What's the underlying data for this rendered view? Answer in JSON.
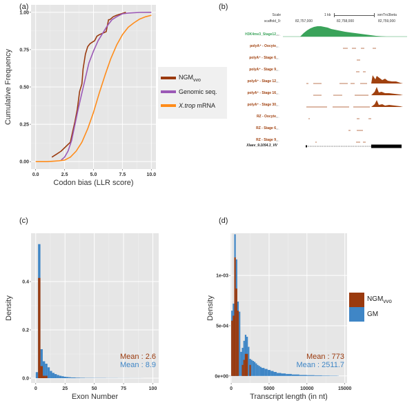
{
  "panels": {
    "a": {
      "label": "(a)"
    },
    "b": {
      "label": "(b)"
    },
    "c": {
      "label": "(c)"
    },
    "d": {
      "label": "(d)"
    }
  },
  "colors": {
    "ngm": "#9a3a0e",
    "genomic": "#9b59b6",
    "xtrop": "#ff8c1a",
    "gm": "#3f86c6",
    "h3k4": "#3aa35a",
    "track": "#a0410f",
    "panel_bg": "#e6e6e6"
  },
  "genome_browser": {
    "scale_label": "Scale",
    "scale_bar": "1 kb",
    "assembly": "xenTro3beta",
    "chrom_label": "scaffold_9:",
    "coords": [
      "82,757,000",
      "82,758,000",
      "82,759,000"
    ],
    "tracks": [
      {
        "name": "H3K4me3_Stage12",
        "scale": "260 -",
        "color": "green"
      },
      {
        "name": "polyA⁺ - Oocyte",
        "scale": "10 -"
      },
      {
        "name": "polyA⁺ - Stage 6",
        "scale": "10 -"
      },
      {
        "name": "polyA⁺ - Stage 9",
        "scale": "10 -"
      },
      {
        "name": "polyA⁺ - Stage 12",
        "scale": "10 -"
      },
      {
        "name": "polyA⁺ - Stage 16",
        "scale": "10 -"
      },
      {
        "name": "polyA⁺ - Stage 30",
        "scale": "10 -"
      },
      {
        "name": "RZ - Oocyte",
        "scale": "10 -"
      },
      {
        "name": "RZ - Stage 6",
        "scale": "10 -"
      },
      {
        "name": "RZ - Stage 9",
        "scale": "10 -"
      }
    ],
    "gene_model": "Xlaev_9.1054.3_VV"
  },
  "chart_data": [
    {
      "panel": "a",
      "type": "line",
      "title": "",
      "xlabel": "Codon bias (LLR score)",
      "ylabel": "Cumulative Frequency",
      "xlim": [
        -0.4,
        10.4
      ],
      "ylim": [
        -0.05,
        1.05
      ],
      "xticks": [
        "0.0",
        "2.5",
        "5.0",
        "7.5",
        "10.0"
      ],
      "xtick_values": [
        0,
        2.5,
        5,
        7.5,
        10
      ],
      "yticks": [
        "0.00",
        "0.25",
        "0.50",
        "0.75",
        "1.00"
      ],
      "ytick_values": [
        0,
        0.25,
        0.5,
        0.75,
        1
      ],
      "grid": true,
      "legend_position": "right",
      "series": [
        {
          "name": "NGM",
          "subscript": "vvo",
          "color_key": "ngm",
          "x": [
            1.4,
            1.8,
            2.2,
            2.6,
            3.0,
            3.2,
            3.4,
            3.6,
            3.8,
            4.0,
            4.1,
            4.3,
            4.5,
            4.7,
            4.9,
            5.1,
            5.3,
            5.5,
            5.8,
            6.1,
            6.3,
            6.4,
            6.7,
            7.0,
            7.4,
            7.8
          ],
          "y": [
            0.03,
            0.05,
            0.07,
            0.1,
            0.13,
            0.2,
            0.27,
            0.35,
            0.47,
            0.52,
            0.62,
            0.72,
            0.77,
            0.79,
            0.8,
            0.81,
            0.84,
            0.85,
            0.86,
            0.87,
            0.95,
            0.95,
            0.97,
            0.98,
            0.99,
            1.0
          ]
        },
        {
          "name": "Genomic seq.",
          "color_key": "genomic",
          "x": [
            2.2,
            2.5,
            2.8,
            3.1,
            3.4,
            3.7,
            4.0,
            4.3,
            4.6,
            5.0,
            5.4,
            5.8,
            6.2,
            6.6,
            7.0,
            7.5,
            8.0,
            9.0,
            10.0
          ],
          "y": [
            0.01,
            0.03,
            0.07,
            0.14,
            0.25,
            0.36,
            0.46,
            0.56,
            0.66,
            0.74,
            0.81,
            0.86,
            0.91,
            0.95,
            0.97,
            0.99,
            0.995,
            0.999,
            1.0
          ]
        },
        {
          "name": "X.trop mRNA",
          "name_italic": "X.trop",
          "name_rest": " mRNA",
          "color_key": "xtrop",
          "x": [
            0.0,
            1.0,
            2.0,
            2.5,
            3.0,
            3.5,
            4.0,
            4.5,
            5.0,
            5.5,
            6.0,
            6.5,
            7.0,
            7.5,
            8.0,
            8.5,
            9.0,
            9.5,
            10.0
          ],
          "y": [
            0.0,
            0.0,
            0.005,
            0.01,
            0.03,
            0.07,
            0.13,
            0.22,
            0.33,
            0.46,
            0.58,
            0.69,
            0.78,
            0.85,
            0.9,
            0.93,
            0.955,
            0.97,
            0.98
          ]
        }
      ]
    },
    {
      "panel": "c",
      "type": "bar",
      "title": "",
      "xlabel": "Exon Number",
      "ylabel": "Density",
      "xlim": [
        -4,
        105
      ],
      "ylim": [
        -0.02,
        0.6
      ],
      "xticks": [
        "0",
        "25",
        "50",
        "75",
        "100"
      ],
      "xtick_values": [
        0,
        25,
        50,
        75,
        100
      ],
      "yticks": [
        "0.0",
        "0.2",
        "0.4"
      ],
      "ytick_values": [
        0,
        0.2,
        0.4
      ],
      "grid": true,
      "bin_width": 2,
      "series": [
        {
          "name": "GM",
          "color_key": "gm",
          "bin_starts": [
            0,
            2,
            4,
            6,
            8,
            10,
            12,
            14,
            16,
            18,
            20,
            22,
            24,
            26,
            28,
            30,
            34,
            38,
            42,
            50,
            60,
            70,
            80,
            90
          ],
          "values": [
            0.025,
            0.555,
            0.12,
            0.07,
            0.06,
            0.045,
            0.03,
            0.022,
            0.017,
            0.013,
            0.01,
            0.008,
            0.006,
            0.005,
            0.004,
            0.003,
            0.002,
            0.0015,
            0.001,
            0.0008,
            0.0005,
            0.0003,
            0.0002,
            0.0001
          ]
        },
        {
          "name": "NGMvvo",
          "color_key": "ngm",
          "bin_starts": [
            2,
            4,
            6,
            8
          ],
          "values": [
            0.415,
            0.05,
            0.01,
            0.01
          ]
        }
      ],
      "annotations": [
        {
          "text": "Mean : 2.6",
          "color_key": "ngm"
        },
        {
          "text": "Mean : 8.9",
          "color_key": "gm"
        }
      ]
    },
    {
      "panel": "d",
      "type": "bar",
      "title": "",
      "xlabel": "Transcript length (in nt)",
      "ylabel": "Density",
      "xlim": [
        -100,
        15300
      ],
      "ylim": [
        -7e-05,
        0.00142
      ],
      "xticks": [
        "0",
        "5000",
        "10000",
        "15000"
      ],
      "xtick_values": [
        0,
        5000,
        10000,
        15000
      ],
      "yticks": [
        "0e+00",
        "5e-04",
        "1e-03"
      ],
      "ytick_values": [
        0,
        0.0005,
        0.001
      ],
      "grid": true,
      "legend_position": "right",
      "bin_width": 200,
      "series": [
        {
          "name": "GM",
          "color_key": "gm",
          "bin_starts": [
            0,
            200,
            400,
            600,
            800,
            1000,
            1200,
            1400,
            1600,
            1800,
            2000,
            2200,
            2400,
            2600,
            2800,
            3000,
            3200,
            3400,
            3600,
            3800,
            4000,
            4400,
            4800,
            5200,
            5600,
            6000,
            6600,
            7200,
            8000,
            9000,
            10000,
            11000,
            12000,
            13000,
            14000
          ],
          "values": [
            0.00065,
            0.00072,
            0.00141,
            0.00116,
            0.00074,
            0.00064,
            0.00024,
            0.00028,
            0.00035,
            0.00041,
            0.00039,
            0.00029,
            0.00017,
            0.00016,
            0.00015,
            0.00014,
            0.000125,
            0.00011,
            0.0001,
            9e-05,
            8e-05,
            7e-05,
            6e-05,
            5e-05,
            4e-05,
            3e-05,
            2.5e-05,
            2e-05,
            1.5e-05,
            1e-05,
            8e-06,
            6e-06,
            4e-06,
            3e-06,
            2e-06
          ]
        },
        {
          "name": "NGMvvo",
          "color_key": "ngm",
          "bin_starts": [
            0,
            200,
            400,
            600,
            800,
            1000,
            1200,
            1400,
            1600,
            1800,
            2000,
            2200,
            2400,
            2600
          ],
          "values": [
            0.00055,
            0.0006,
            0.00118,
            0.00087,
            0.00065,
            0.0,
            0.0,
            0.00011,
            0.00016,
            0.00022,
            0.00022,
            0.0,
            0.00011,
            0.0
          ]
        }
      ],
      "annotations": [
        {
          "text": "Mean : 773",
          "color_key": "ngm"
        },
        {
          "text": "Mean : 2511.7",
          "color_key": "gm"
        }
      ],
      "legend": [
        {
          "name": "NGM",
          "subscript": "vvo",
          "color_key": "ngm"
        },
        {
          "name": "GM",
          "color_key": "gm"
        }
      ]
    }
  ]
}
